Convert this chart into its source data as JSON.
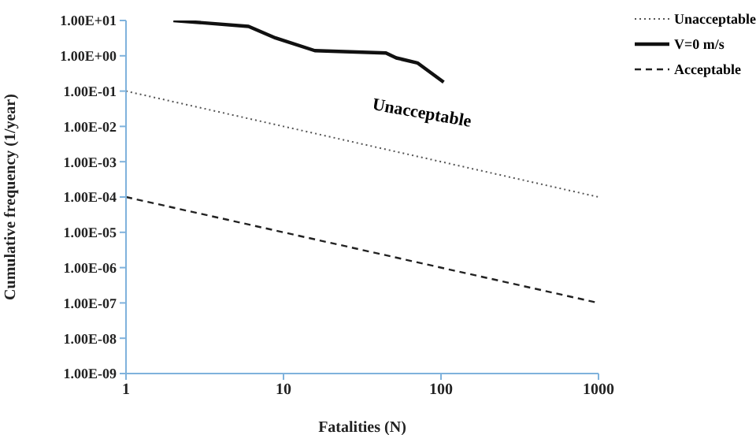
{
  "chart_data": {
    "type": "line",
    "xlabel": "Fatalities (N)",
    "ylabel": "Cumulative frequency (1/year)",
    "log": "xy",
    "xlim": [
      1,
      1000
    ],
    "xticks": [
      1,
      10,
      100,
      1000
    ],
    "ylim": [
      1e-09,
      10
    ],
    "yticks": [
      {
        "value": 1e-09,
        "label": "1.00E-09"
      },
      {
        "value": 1e-08,
        "label": "1.00E-08"
      },
      {
        "value": 1e-07,
        "label": "1.00E-07"
      },
      {
        "value": 1e-06,
        "label": "1.00E-06"
      },
      {
        "value": 1e-05,
        "label": "1.00E-05"
      },
      {
        "value": 0.0001,
        "label": "1.00E-04"
      },
      {
        "value": 0.001,
        "label": "1.00E-03"
      },
      {
        "value": 0.01,
        "label": "1.00E-02"
      },
      {
        "value": 0.1,
        "label": "1.00E-01"
      },
      {
        "value": 1,
        "label": "1.00E+00"
      },
      {
        "value": 10,
        "label": "1.00E+01"
      }
    ],
    "grid": false,
    "legend": "top right",
    "marker": "none",
    "series": [
      {
        "name": "Unacceptable",
        "color": "#555555",
        "line_style": "dotted",
        "x": [
          1,
          1000
        ],
        "values": [
          0.1,
          0.0001
        ]
      },
      {
        "name": "V=0 m/s",
        "color": "#111111",
        "line_style": "solid",
        "x": [
          2,
          6,
          8.9,
          15.8,
          44.7,
          52,
          70.8,
          104
        ],
        "values": [
          10,
          6.8,
          3.2,
          1.4,
          1.2,
          0.87,
          0.63,
          0.18
        ]
      },
      {
        "name": "Acceptable",
        "color": "#222222",
        "line_style": "dashed",
        "x": [
          1,
          1000
        ],
        "values": [
          0.0001,
          1e-07
        ]
      }
    ],
    "annotations": [
      "Unacceptable"
    ]
  }
}
